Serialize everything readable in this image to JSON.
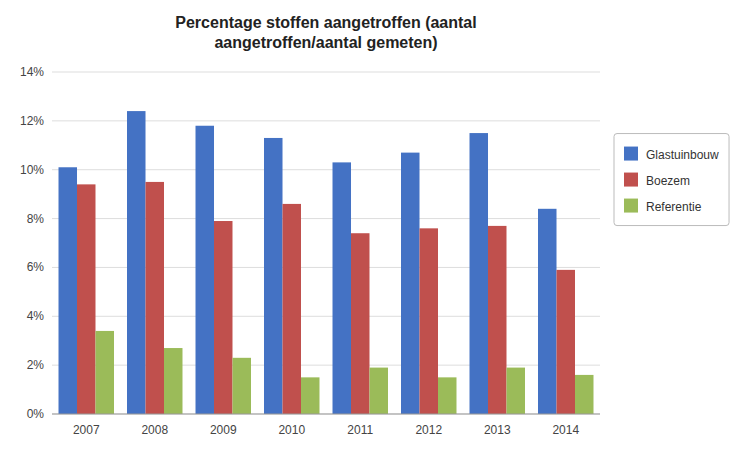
{
  "chart_data": {
    "type": "bar",
    "title": "Percentage stoffen aangetroffen (aantal\naangetroffen/aantal gemeten)",
    "categories": [
      "2007",
      "2008",
      "2009",
      "2010",
      "2011",
      "2012",
      "2013",
      "2014"
    ],
    "series": [
      {
        "name": "Glastuinbouw",
        "color": "#4472C4",
        "values": [
          0.101,
          0.124,
          0.118,
          0.113,
          0.103,
          0.107,
          0.115,
          0.084
        ]
      },
      {
        "name": "Boezem",
        "color": "#C0504D",
        "values": [
          0.094,
          0.095,
          0.079,
          0.086,
          0.074,
          0.076,
          0.077,
          0.059
        ]
      },
      {
        "name": "Referentie",
        "color": "#9BBB59",
        "values": [
          0.034,
          0.027,
          0.023,
          0.015,
          0.019,
          0.015,
          0.019,
          0.016
        ]
      }
    ],
    "ylim": [
      0,
      0.14
    ],
    "yticks": [
      {
        "value": 0,
        "label": "0%"
      },
      {
        "value": 0.02,
        "label": "2%"
      },
      {
        "value": 0.04,
        "label": "4%"
      },
      {
        "value": 0.06,
        "label": "6%"
      },
      {
        "value": 0.08,
        "label": "8%"
      },
      {
        "value": 0.1,
        "label": "10%"
      },
      {
        "value": 0.12,
        "label": "12%"
      },
      {
        "value": 0.14,
        "label": "14%"
      }
    ],
    "grid": true,
    "legend": "right"
  }
}
